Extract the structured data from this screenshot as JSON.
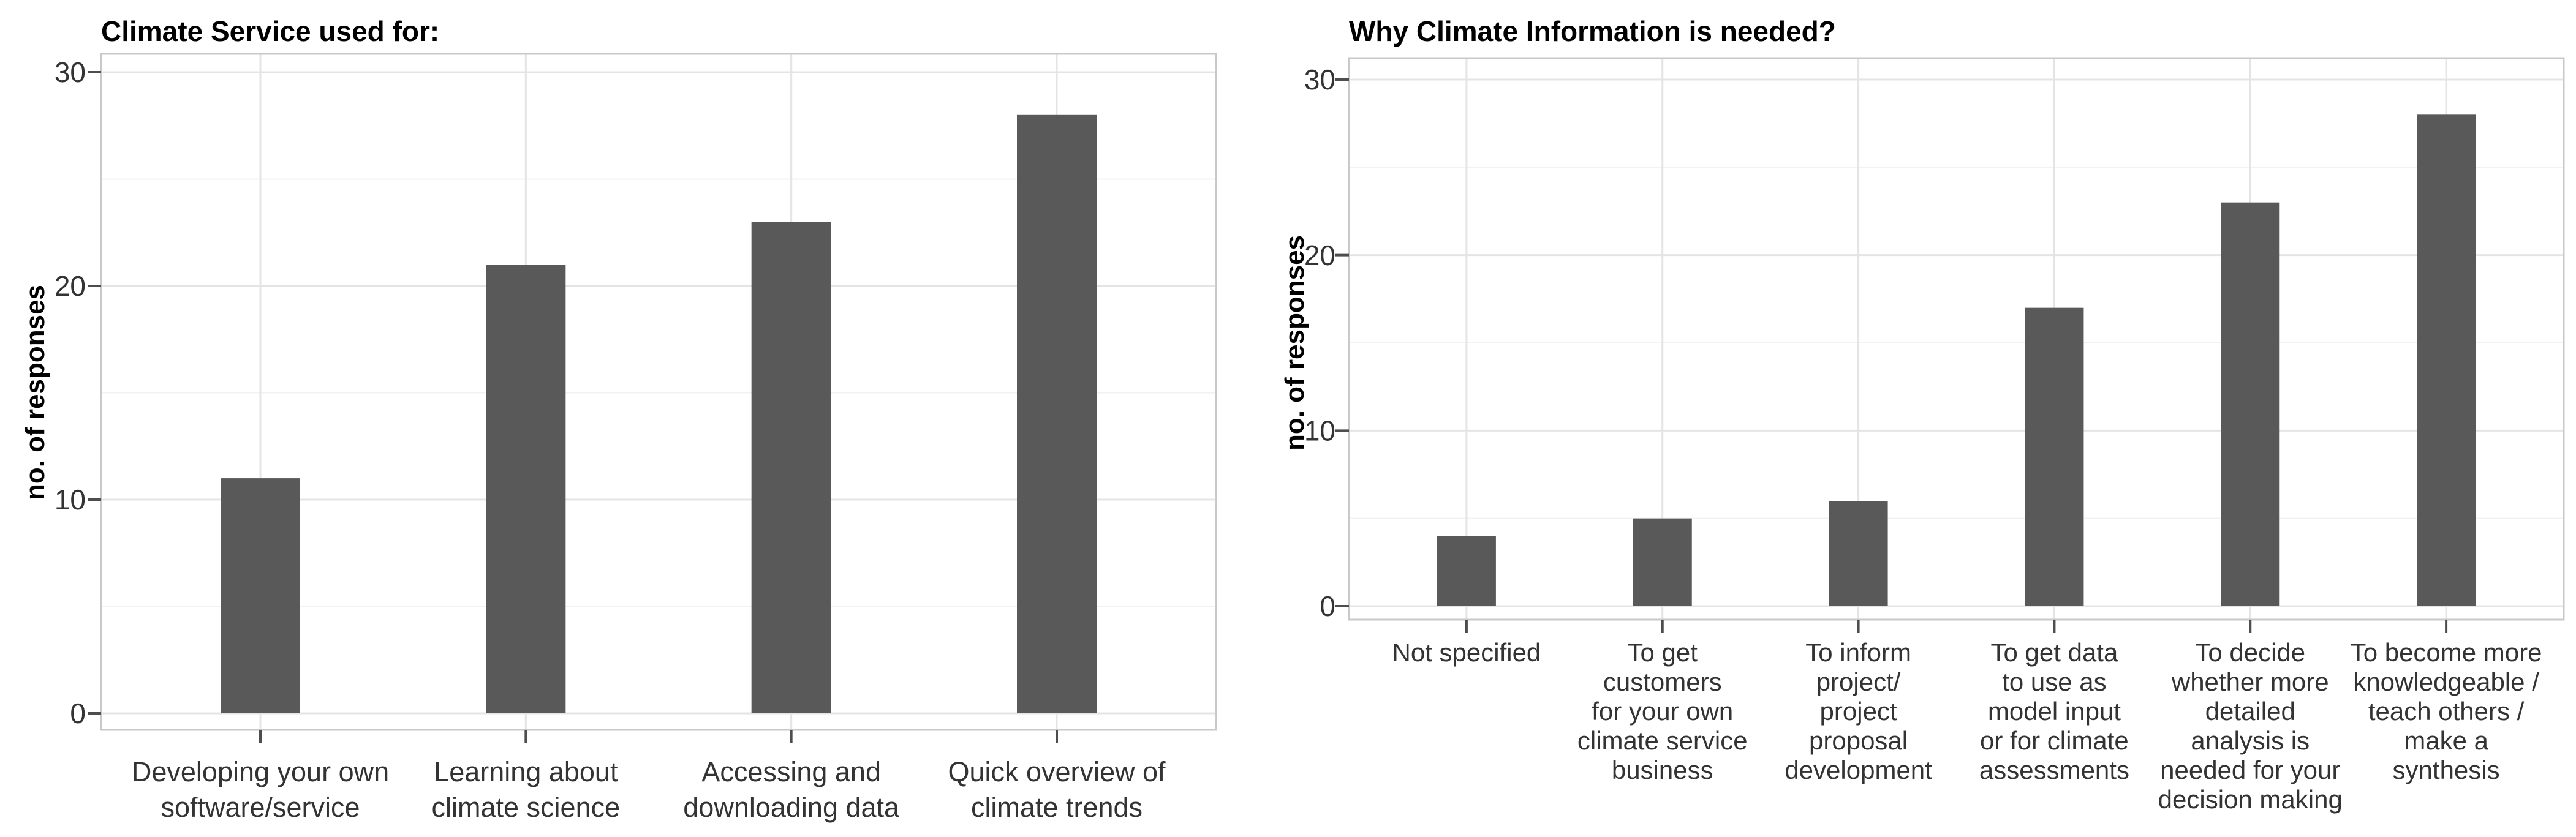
{
  "figure": {
    "background": "#ffffff"
  },
  "colors": {
    "bar": "#595959",
    "grid_major": "#e4e4e4",
    "grid_minor": "#f2f2f2",
    "panel_border": "#c9c9c9",
    "tick_mark": "#4d4d4d",
    "axis_text": "#333333",
    "title_text": "#000000"
  },
  "chart_data": [
    {
      "type": "bar",
      "title": "Climate Service used for:",
      "xlabel": "",
      "ylabel": "no. of responses",
      "ylim": [
        0,
        30
      ],
      "yticks_major": [
        0,
        10,
        20,
        30
      ],
      "yticks_minor": [
        5,
        15,
        25
      ],
      "grid": "horizontal major+minor, vertical at category centers",
      "legend_position": "none",
      "categories": [
        "Developing your own software/service",
        "Learning about climate science",
        "Accessing and downloading data",
        "Quick overview of climate trends"
      ],
      "category_label_lines": [
        [
          "Developing your own",
          "software/service"
        ],
        [
          "Learning about",
          "climate science"
        ],
        [
          "Accessing and",
          "downloading data"
        ],
        [
          "Quick overview of",
          "climate trends"
        ]
      ],
      "values": [
        11,
        21,
        23,
        28
      ]
    },
    {
      "type": "bar",
      "title": "Why Climate Information is needed?",
      "xlabel": "",
      "ylabel": "no. of responses",
      "ylim": [
        0,
        30
      ],
      "yticks_major": [
        0,
        10,
        20,
        30
      ],
      "yticks_minor": [
        5,
        15,
        25
      ],
      "grid": "horizontal major+minor, vertical at category centers",
      "legend_position": "none",
      "categories": [
        "Not specified",
        "To get customers for your own climate service business",
        "To inform project/ project proposal development",
        "To get data to use as model input or for climate assessments",
        "To decide whether more detailed analysis is needed for your decision making",
        "To become more knowledgeable / teach others / make a synthesis"
      ],
      "category_label_lines": [
        [
          "Not specified"
        ],
        [
          "To get",
          "customers",
          "for your own",
          "climate service",
          "business"
        ],
        [
          "To inform",
          "project/",
          "project",
          "proposal",
          "development"
        ],
        [
          "To get data",
          "to use as",
          "model input",
          "or for climate",
          "assessments"
        ],
        [
          "To decide",
          "whether more",
          "detailed",
          "analysis is",
          "needed for your",
          "decision making"
        ],
        [
          "To become more",
          "knowledgeable /",
          "teach others /",
          "make a",
          "synthesis"
        ]
      ],
      "values": [
        4,
        5,
        6,
        17,
        23,
        28
      ]
    }
  ]
}
